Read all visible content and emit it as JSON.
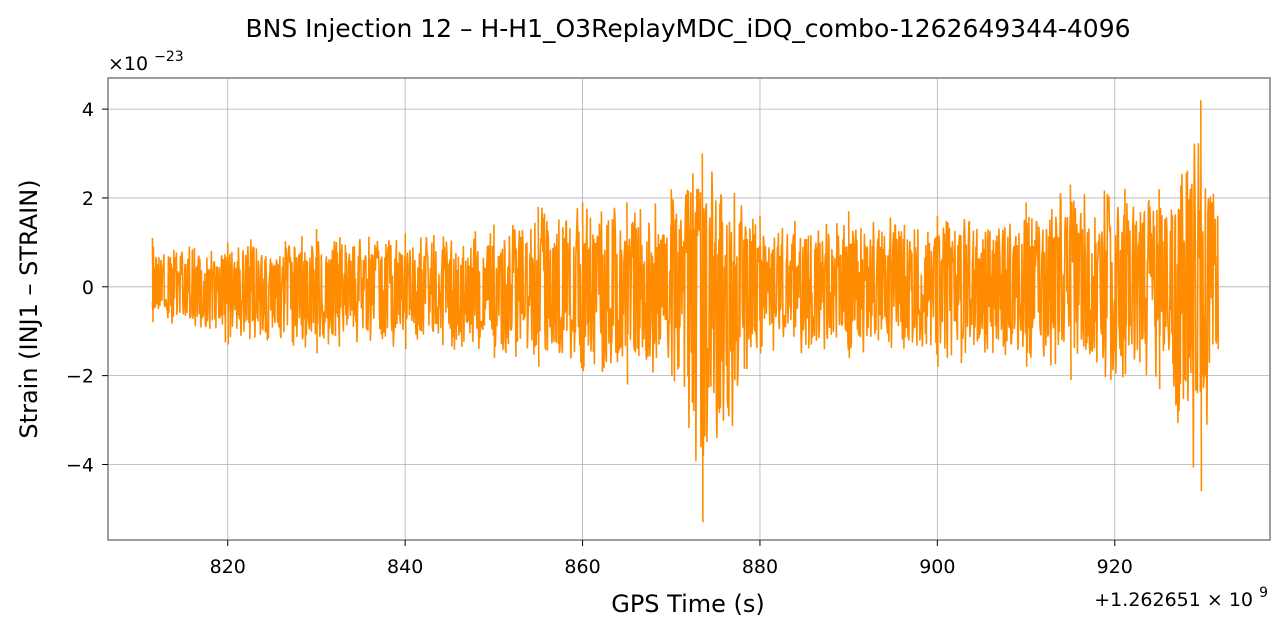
{
  "chart_data": {
    "type": "line",
    "title": "BNS Injection 12 – H-H1_O3ReplayMDC_iDQ_combo-1262649344-4096",
    "xlabel": "GPS Time (s)",
    "ylabel": "Strain (INJ1 – STRAIN)",
    "x_offset_text": "+1.262651 × 10",
    "x_offset_exponent": "9",
    "y_scale_text": "×10",
    "y_scale_exponent": "−23",
    "xlim": [
      806.5,
      937.5
    ],
    "ylim": [
      -5.7,
      4.7
    ],
    "x_ticks": [
      820,
      840,
      860,
      880,
      900,
      920
    ],
    "x_tick_labels": [
      "820",
      "840",
      "860",
      "880",
      "900",
      "920"
    ],
    "y_ticks": [
      -4,
      -2,
      0,
      2,
      4
    ],
    "y_tick_labels": [
      "−4",
      "−2",
      "0",
      "2",
      "4"
    ],
    "grid": true,
    "line_color": "#ff8c00",
    "series": [
      {
        "x_start": 811.5,
        "x_end": 931.6,
        "baseline_amplitude": 0.9,
        "envelope": [
          {
            "x": 811.5,
            "upper": 1.1,
            "lower": -0.8
          },
          {
            "x": 820,
            "upper": 1.0,
            "lower": -1.3
          },
          {
            "x": 830,
            "upper": 1.3,
            "lower": -1.5
          },
          {
            "x": 840,
            "upper": 1.2,
            "lower": -1.4
          },
          {
            "x": 850,
            "upper": 1.4,
            "lower": -1.6
          },
          {
            "x": 855,
            "upper": 1.8,
            "lower": -1.8
          },
          {
            "x": 860,
            "upper": 1.9,
            "lower": -1.9
          },
          {
            "x": 865,
            "upper": 1.9,
            "lower": -2.2
          },
          {
            "x": 870,
            "upper": 2.2,
            "lower": -2.0
          },
          {
            "x": 873.5,
            "upper": 3.0,
            "lower": -5.3
          },
          {
            "x": 880,
            "upper": 1.6,
            "lower": -1.5
          },
          {
            "x": 890,
            "upper": 1.7,
            "lower": -1.6
          },
          {
            "x": 900,
            "upper": 1.6,
            "lower": -1.8
          },
          {
            "x": 910,
            "upper": 1.9,
            "lower": -1.8
          },
          {
            "x": 915,
            "upper": 2.3,
            "lower": -2.1
          },
          {
            "x": 925,
            "upper": 2.2,
            "lower": -2.3
          },
          {
            "x": 929.7,
            "upper": 4.2,
            "lower": -4.6
          },
          {
            "x": 931.6,
            "upper": 1.6,
            "lower": -1.4
          }
        ]
      }
    ]
  }
}
